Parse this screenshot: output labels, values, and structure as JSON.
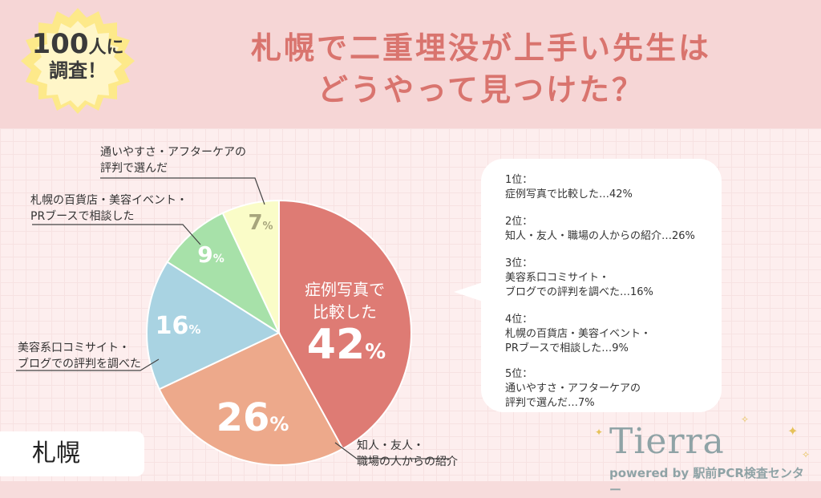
{
  "badge": {
    "line1_num": "100",
    "line1_rest": "人に",
    "line2": "調査！"
  },
  "title": {
    "line1": "札幌で二重埋没が上手い先生は",
    "line2": "どうやって見つけた？"
  },
  "region_label": "札幌",
  "chart_data": {
    "type": "pie",
    "slices": [
      {
        "label": "症例写真で比較した",
        "value": 42,
        "display": "42",
        "color": "#de7b74"
      },
      {
        "label": "知人・友人・職場の人からの紹介",
        "value": 26,
        "display": "26",
        "color": "#eda98b"
      },
      {
        "label": "美容系口コミサイト・ブログでの評判を調べた",
        "value": 16,
        "display": "16",
        "color": "#a9d3e2"
      },
      {
        "label": "札幌の百貨店・美容イベント・PRブースで相談した",
        "value": 9,
        "display": "9",
        "color": "#a7e1a9"
      },
      {
        "label": "通いやすさ・アフターケアの評判で選んだ",
        "value": 7,
        "display": "7",
        "color": "#fafcc8"
      }
    ],
    "percent_sign": "%",
    "inner_label": {
      "line1": "症例写真で",
      "line2": "比較した"
    }
  },
  "callouts": {
    "c1": {
      "line1": "知人・友人・",
      "line2": "職場の人からの紹介"
    },
    "c2": {
      "line1": "美容系口コミサイト・",
      "line2": "ブログでの評判を調べた"
    },
    "c3": {
      "line1": "札幌の百貨店・美容イベント・",
      "line2": "PRブースで相談した"
    },
    "c4": {
      "line1": "通いやすさ・アフターケアの",
      "line2": "評判で選んだ"
    }
  },
  "ranking": [
    {
      "rank": "1位：",
      "text": "症例写真で比較した…42%"
    },
    {
      "rank": "2位：",
      "text": "知人・友人・職場の人からの紹介…26%"
    },
    {
      "rank": "3位：",
      "text": "美容系口コミサイト・",
      "text2": "ブログでの評判を調べた…16%"
    },
    {
      "rank": "4位：",
      "text": "札幌の百貨店・美容イベント・",
      "text2": "PRブースで相談した…9%"
    },
    {
      "rank": "5位：",
      "text": "通いやすさ・アフターケアの",
      "text2": "評判で選んだ…7%"
    }
  ],
  "logo": {
    "word": "Tierra",
    "sub": "powered by 駅前PCR検査センター"
  }
}
